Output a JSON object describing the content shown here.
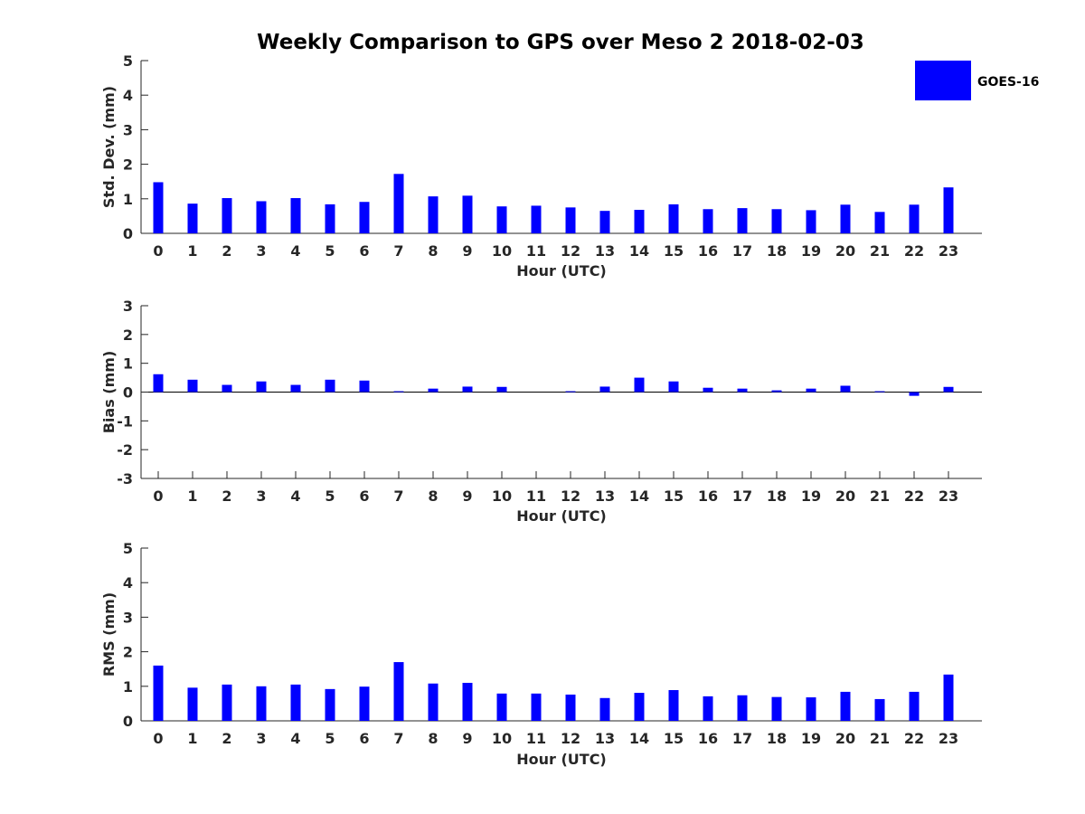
{
  "chart_data": [
    {
      "type": "bar",
      "title": "Weekly Comparison to GPS over Meso 2 2018-02-03",
      "xlabel": "Hour (UTC)",
      "ylabel": "Std. Dev. (mm)",
      "ylim": [
        0,
        5
      ],
      "yticks": [
        0,
        1,
        2,
        3,
        4,
        5
      ],
      "categories": [
        "0",
        "1",
        "2",
        "3",
        "4",
        "5",
        "6",
        "7",
        "8",
        "9",
        "10",
        "11",
        "12",
        "13",
        "14",
        "15",
        "16",
        "17",
        "18",
        "19",
        "20",
        "21",
        "22",
        "23"
      ],
      "series": [
        {
          "name": "GOES-16",
          "color": "#0000ff",
          "values": [
            1.48,
            0.86,
            1.02,
            0.93,
            1.02,
            0.84,
            0.91,
            1.72,
            1.07,
            1.09,
            0.78,
            0.8,
            0.75,
            0.65,
            0.68,
            0.84,
            0.7,
            0.73,
            0.7,
            0.67,
            0.83,
            0.62,
            0.83,
            1.33
          ]
        }
      ],
      "legend": {
        "position": "top-right",
        "labels": [
          "GOES-16"
        ]
      },
      "grid": false
    },
    {
      "type": "bar",
      "xlabel": "Hour (UTC)",
      "ylabel": "Bias (mm)",
      "ylim": [
        -3,
        3
      ],
      "yticks": [
        -3,
        -2,
        -1,
        0,
        1,
        2,
        3
      ],
      "categories": [
        "0",
        "1",
        "2",
        "3",
        "4",
        "5",
        "6",
        "7",
        "8",
        "9",
        "10",
        "11",
        "12",
        "13",
        "14",
        "15",
        "16",
        "17",
        "18",
        "19",
        "20",
        "21",
        "22",
        "23"
      ],
      "series": [
        {
          "name": "GOES-16",
          "color": "#0000ff",
          "values": [
            0.62,
            0.43,
            0.25,
            0.37,
            0.25,
            0.43,
            0.4,
            0.03,
            0.12,
            0.19,
            0.18,
            0.0,
            0.03,
            0.19,
            0.5,
            0.37,
            0.15,
            0.12,
            0.06,
            0.12,
            0.22,
            0.03,
            -0.13,
            0.18
          ]
        }
      ],
      "grid": false
    },
    {
      "type": "bar",
      "xlabel": "Hour (UTC)",
      "ylabel": "RMS (mm)",
      "ylim": [
        0,
        5
      ],
      "yticks": [
        0,
        1,
        2,
        3,
        4,
        5
      ],
      "categories": [
        "0",
        "1",
        "2",
        "3",
        "4",
        "5",
        "6",
        "7",
        "8",
        "9",
        "10",
        "11",
        "12",
        "13",
        "14",
        "15",
        "16",
        "17",
        "18",
        "19",
        "20",
        "21",
        "22",
        "23"
      ],
      "series": [
        {
          "name": "GOES-16",
          "color": "#0000ff",
          "values": [
            1.6,
            0.96,
            1.05,
            1.0,
            1.05,
            0.92,
            0.99,
            1.7,
            1.08,
            1.1,
            0.79,
            0.79,
            0.76,
            0.66,
            0.81,
            0.89,
            0.71,
            0.74,
            0.69,
            0.68,
            0.84,
            0.63,
            0.84,
            1.34
          ]
        }
      ],
      "grid": false
    }
  ]
}
